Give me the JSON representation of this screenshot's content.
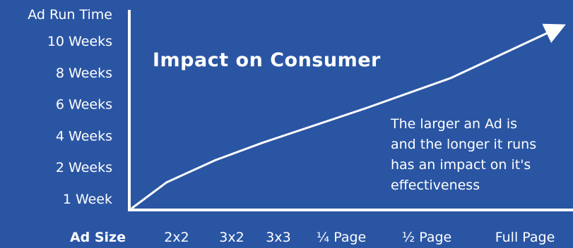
{
  "chart_data": {
    "type": "line",
    "title": "Impact on Consumer",
    "ylabel": "Ad Run Time",
    "xlabel": "Ad Size",
    "y_ticks": [
      "1 Week",
      "2 Weeks",
      "4 Weeks",
      "6 Weeks",
      "8 Weeks",
      "10 Weeks"
    ],
    "categories": [
      "2x2",
      "3x2",
      "3x3",
      "¼ Page",
      "½ Page",
      "Full Page"
    ],
    "values": [
      1.6,
      2.95,
      4.0,
      6.1,
      7.95,
      11.0
    ],
    "annotation": [
      "The larger an Ad is",
      "and the longer it runs",
      "has an impact on it's",
      "effectiveness"
    ],
    "colors": {
      "background": "#2a55a3",
      "line": "#ffffff",
      "text": "#ffffff"
    }
  }
}
